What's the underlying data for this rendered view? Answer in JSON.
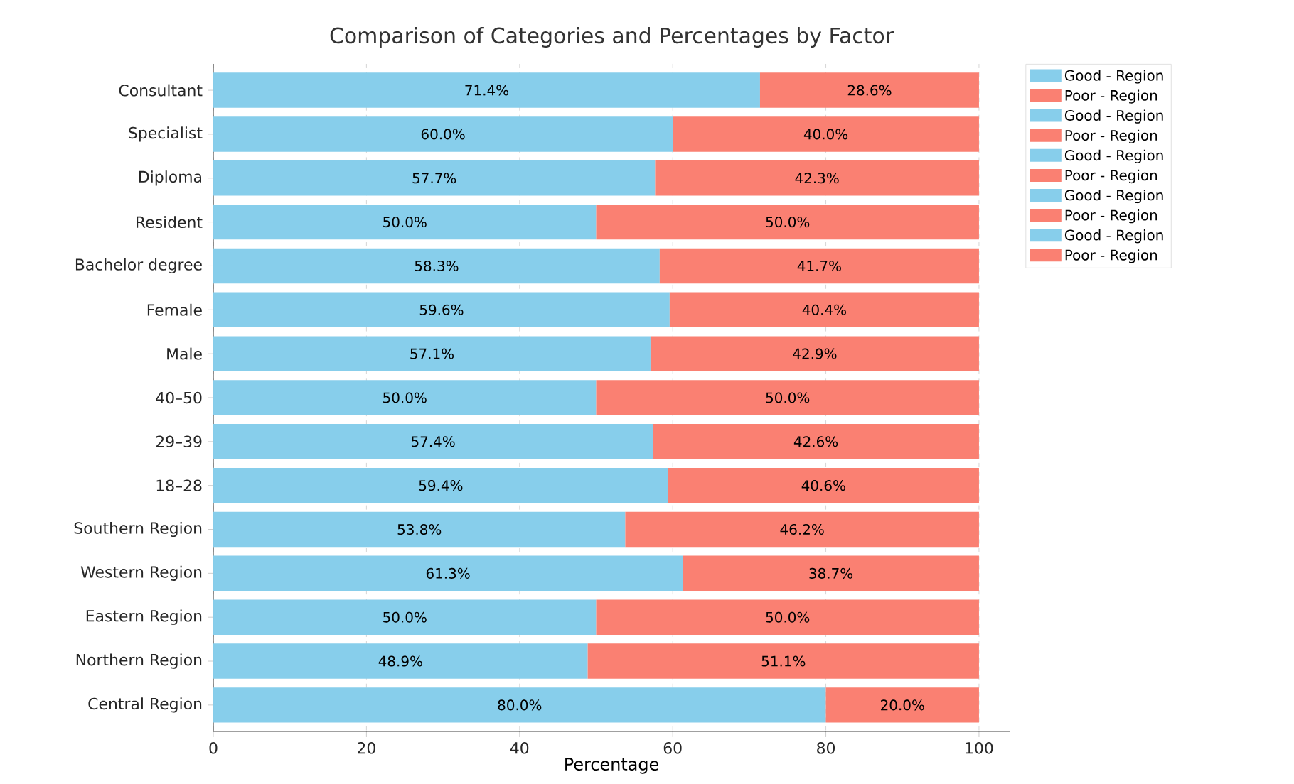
{
  "chart_data": {
    "type": "bar",
    "orientation": "horizontal",
    "stacked": true,
    "title": "Comparison of Categories and Percentages by Factor",
    "xlabel": "Percentage",
    "categories": [
      "Consultant",
      "Specialist",
      "Diploma",
      "Resident",
      "Bachelor degree",
      "Female",
      "Male",
      "40–50",
      "29–39",
      "18–28",
      "Southern Region",
      "Western Region",
      "Eastern Region",
      "Northern Region",
      "Central Region"
    ],
    "xlim": [
      0,
      104
    ],
    "xticks": [
      0,
      20,
      40,
      60,
      80,
      100
    ],
    "grid": "x",
    "legend": "top right",
    "series": [
      {
        "name": "Good - Region",
        "color": "#87ceeb",
        "values": [
          null,
          null,
          null,
          null,
          null,
          null,
          null,
          null,
          null,
          null,
          53.8,
          61.3,
          50.0,
          48.9,
          80.0
        ],
        "value_labels": [
          null,
          null,
          null,
          null,
          null,
          null,
          null,
          null,
          null,
          null,
          "53.8%",
          "61.3%",
          "50.0%",
          "48.9%",
          "80.0%"
        ]
      },
      {
        "name": "Poor - Region",
        "color": "#fa8072",
        "values": [
          null,
          null,
          null,
          null,
          null,
          null,
          null,
          null,
          null,
          null,
          46.2,
          38.7,
          50.0,
          51.1,
          20.0
        ],
        "value_labels": [
          null,
          null,
          null,
          null,
          null,
          null,
          null,
          null,
          null,
          null,
          "46.2%",
          "38.7%",
          "50.0%",
          "51.1%",
          "20.0%"
        ]
      },
      {
        "name": "Good - Region",
        "color": "#87ceeb",
        "values": [
          null,
          null,
          null,
          null,
          null,
          null,
          null,
          50.0,
          57.4,
          59.4,
          null,
          null,
          null,
          null,
          null
        ],
        "value_labels": [
          null,
          null,
          null,
          null,
          null,
          null,
          null,
          "50.0%",
          "57.4%",
          "59.4%",
          null,
          null,
          null,
          null,
          null
        ]
      },
      {
        "name": "Poor - Region",
        "color": "#fa8072",
        "values": [
          null,
          null,
          null,
          null,
          null,
          null,
          null,
          50.0,
          42.6,
          40.6,
          null,
          null,
          null,
          null,
          null
        ],
        "value_labels": [
          null,
          null,
          null,
          null,
          null,
          null,
          null,
          "50.0%",
          "42.6%",
          "40.6%",
          null,
          null,
          null,
          null,
          null
        ]
      },
      {
        "name": "Good - Region",
        "color": "#87ceeb",
        "values": [
          null,
          null,
          null,
          null,
          null,
          59.6,
          57.1,
          null,
          null,
          null,
          null,
          null,
          null,
          null,
          null
        ],
        "value_labels": [
          null,
          null,
          null,
          null,
          null,
          "59.6%",
          "57.1%",
          null,
          null,
          null,
          null,
          null,
          null,
          null,
          null
        ]
      },
      {
        "name": "Poor - Region",
        "color": "#fa8072",
        "values": [
          null,
          null,
          null,
          null,
          null,
          40.4,
          42.9,
          null,
          null,
          null,
          null,
          null,
          null,
          null,
          null
        ],
        "value_labels": [
          null,
          null,
          null,
          null,
          null,
          "40.4%",
          "42.9%",
          null,
          null,
          null,
          null,
          null,
          null,
          null,
          null
        ]
      },
      {
        "name": "Good - Region",
        "color": "#87ceeb",
        "values": [
          null,
          null,
          null,
          50.0,
          58.3,
          null,
          null,
          null,
          null,
          null,
          null,
          null,
          null,
          null,
          null
        ],
        "value_labels": [
          null,
          null,
          null,
          "50.0%",
          "58.3%",
          null,
          null,
          null,
          null,
          null,
          null,
          null,
          null,
          null,
          null
        ]
      },
      {
        "name": "Poor - Region",
        "color": "#fa8072",
        "values": [
          null,
          null,
          null,
          50.0,
          41.7,
          null,
          null,
          null,
          null,
          null,
          null,
          null,
          null,
          null,
          null
        ],
        "value_labels": [
          null,
          null,
          null,
          "50.0%",
          "41.7%",
          null,
          null,
          null,
          null,
          null,
          null,
          null,
          null,
          null,
          null
        ]
      },
      {
        "name": "Good - Region",
        "color": "#87ceeb",
        "values": [
          71.4,
          60.0,
          57.7,
          null,
          null,
          null,
          null,
          null,
          null,
          null,
          null,
          null,
          null,
          null,
          null
        ],
        "value_labels": [
          "71.4%",
          "60.0%",
          "57.7%",
          null,
          null,
          null,
          null,
          null,
          null,
          null,
          null,
          null,
          null,
          null,
          null
        ]
      },
      {
        "name": "Poor - Region",
        "color": "#fa8072",
        "values": [
          28.6,
          40.0,
          42.3,
          null,
          null,
          null,
          null,
          null,
          null,
          null,
          null,
          null,
          null,
          null,
          null
        ],
        "value_labels": [
          "28.6%",
          "40.0%",
          "42.3%",
          null,
          null,
          null,
          null,
          null,
          null,
          null,
          null,
          null,
          null,
          null,
          null
        ]
      }
    ]
  }
}
